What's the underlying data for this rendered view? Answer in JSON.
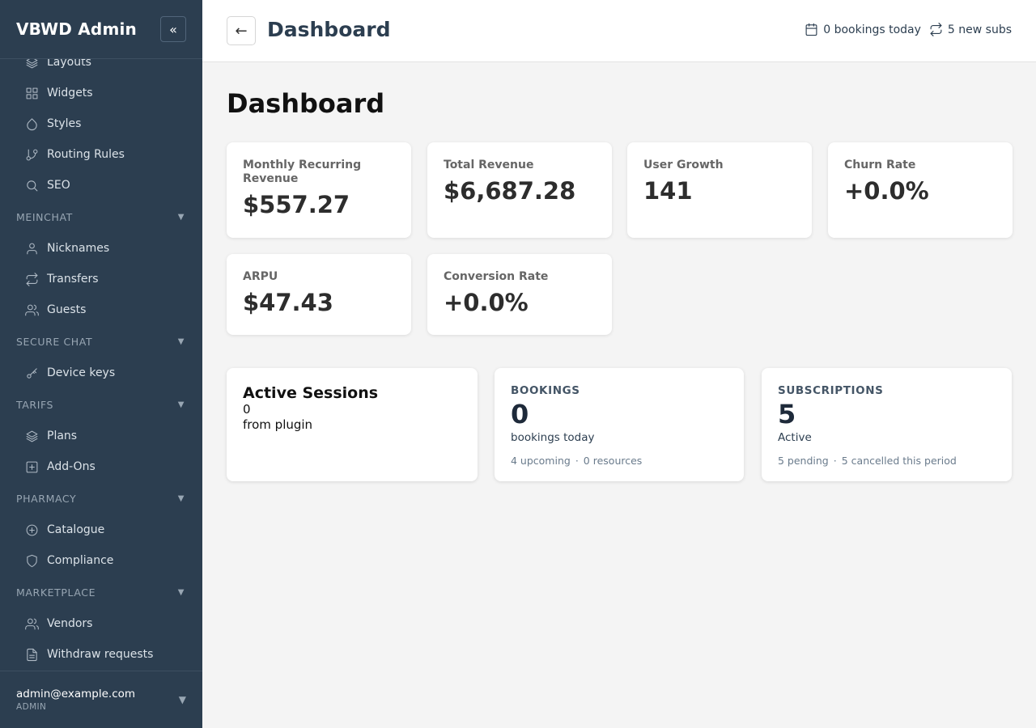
{
  "sidebar": {
    "title": "VBWD Admin",
    "collapse_label": "«",
    "partial_item": {
      "label": "Layouts",
      "icon": "layers-icon"
    },
    "items_top": [
      {
        "label": "Widgets",
        "icon": "grid-icon"
      },
      {
        "label": "Styles",
        "icon": "droplet-icon"
      },
      {
        "label": "Routing Rules",
        "icon": "git-branch-icon"
      },
      {
        "label": "SEO",
        "icon": "search-icon"
      }
    ],
    "sections": [
      {
        "title": "MEINCHAT",
        "items": [
          {
            "label": "Nicknames",
            "icon": "user-icon"
          },
          {
            "label": "Transfers",
            "icon": "repeat-icon"
          },
          {
            "label": "Guests",
            "icon": "users-icon"
          }
        ]
      },
      {
        "title": "SECURE CHAT",
        "items": [
          {
            "label": "Device keys",
            "icon": "key-icon"
          }
        ]
      },
      {
        "title": "TARIFS",
        "items": [
          {
            "label": "Plans",
            "icon": "layers-icon"
          },
          {
            "label": "Add-Ons",
            "icon": "plus-square-icon"
          }
        ]
      },
      {
        "title": "PHARMACY",
        "items": [
          {
            "label": "Catalogue",
            "icon": "plus-circle-icon"
          },
          {
            "label": "Compliance",
            "icon": "shield-icon"
          }
        ]
      },
      {
        "title": "MARKETPLACE",
        "items": [
          {
            "label": "Vendors",
            "icon": "users-icon"
          },
          {
            "label": "Withdraw requests",
            "icon": "file-text-icon"
          }
        ]
      }
    ],
    "user": {
      "email": "admin@example.com",
      "role": "ADMIN"
    }
  },
  "topbar": {
    "back_label": "←",
    "title": "Dashboard",
    "bookings_today": "0 bookings today",
    "new_subs": "5 new subs"
  },
  "main": {
    "title": "Dashboard",
    "stats": [
      {
        "label": "Monthly Recurring Revenue",
        "value": "$557.27"
      },
      {
        "label": "Total Revenue",
        "value": "$6,687.28"
      },
      {
        "label": "User Growth",
        "value": "141"
      },
      {
        "label": "Churn Rate",
        "value": "+0.0%"
      },
      {
        "label": "ARPU",
        "value": "$47.43"
      },
      {
        "label": "Conversion Rate",
        "value": "+0.0%"
      }
    ],
    "active_sessions": {
      "title": "Active Sessions",
      "value": "0",
      "note": "from plugin"
    },
    "bookings": {
      "heading": "BOOKINGS",
      "value": "0",
      "sub": "bookings today",
      "upcoming": "4 upcoming",
      "resources": "0 resources"
    },
    "subscriptions": {
      "heading": "SUBSCRIPTIONS",
      "value": "5",
      "sub": "Active",
      "pending": "5 pending",
      "cancelled": "5 cancelled this period"
    }
  }
}
